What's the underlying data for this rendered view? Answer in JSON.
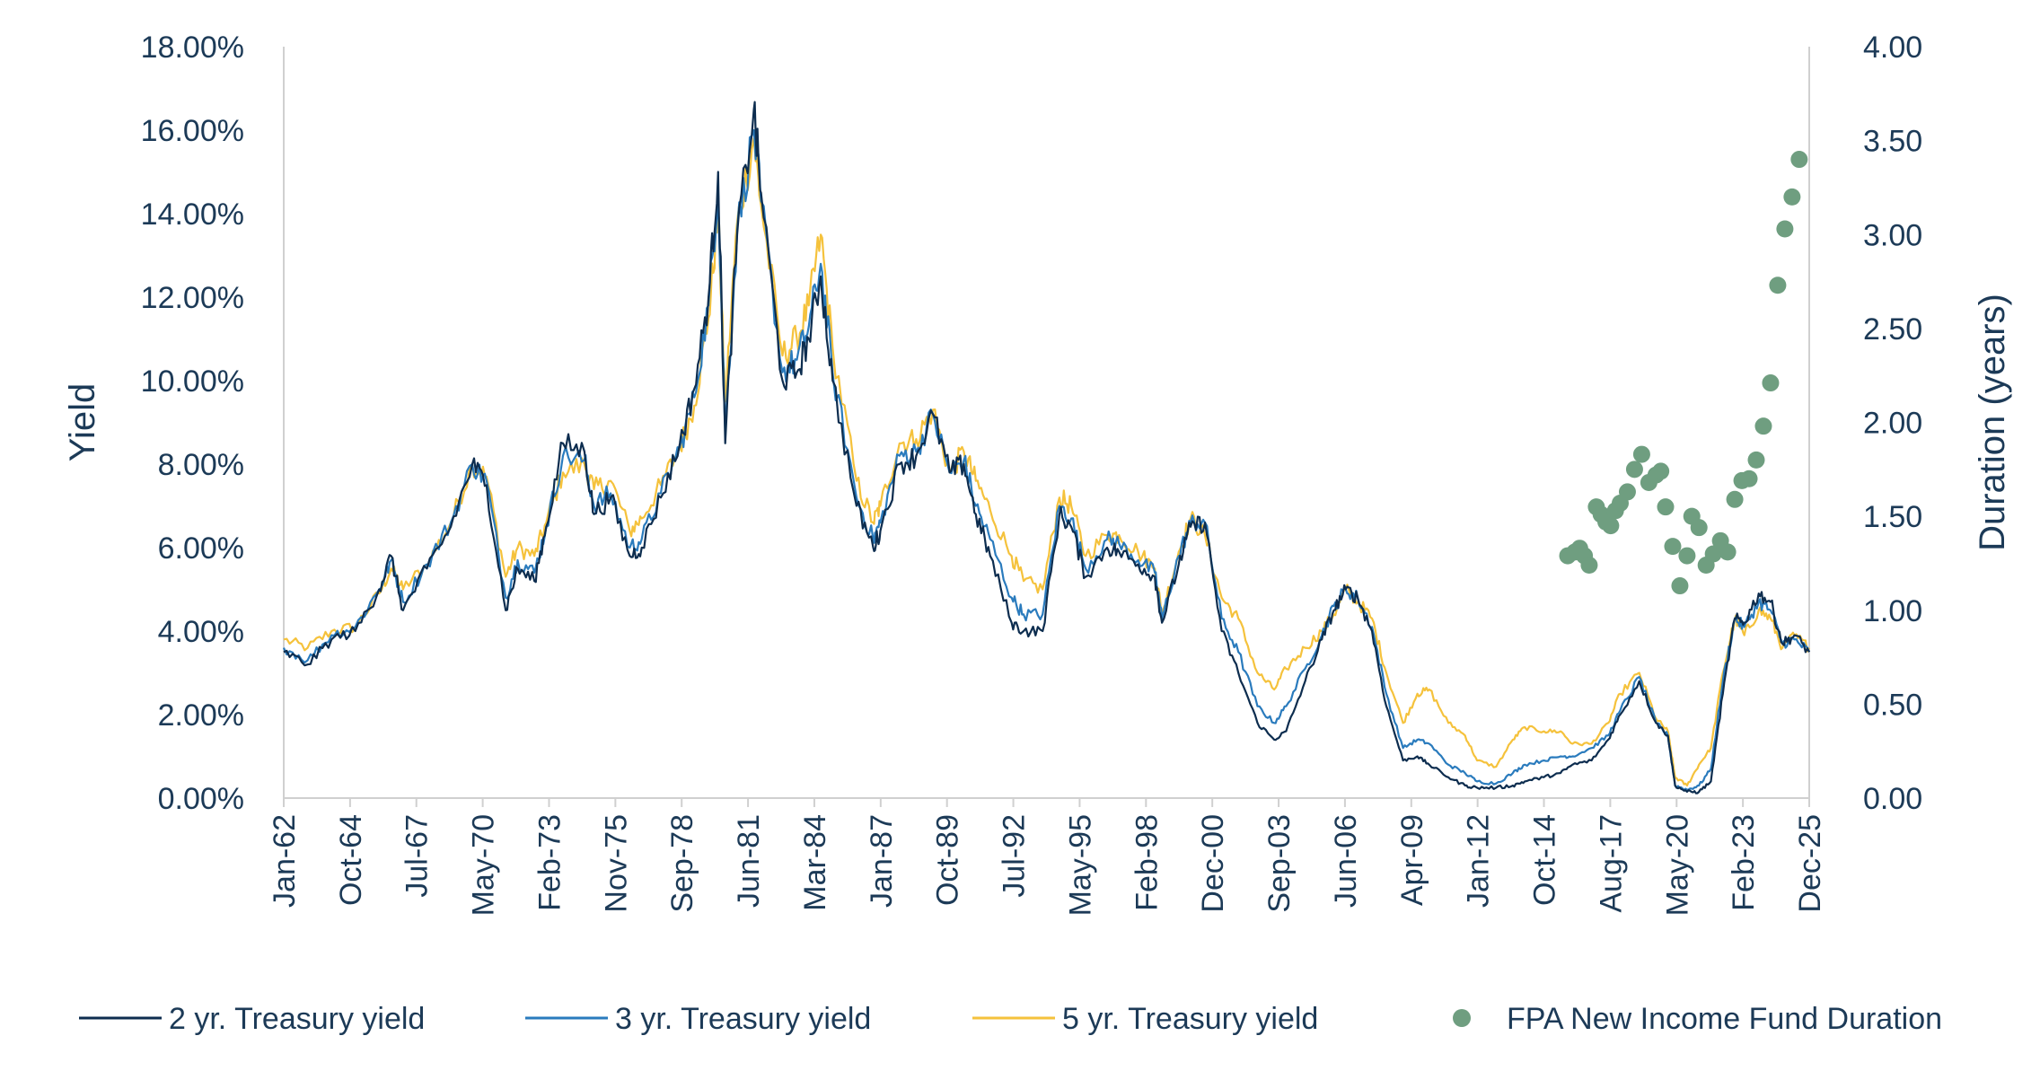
{
  "chart_data": {
    "type": "line",
    "title": "",
    "ylabel": "Yield",
    "y2label": "Duration (years)",
    "ylim": [
      0,
      18
    ],
    "y2lim": [
      0,
      4
    ],
    "xlim": [
      1962.0,
      2025.92
    ],
    "yticks": [
      "0.00%",
      "2.00%",
      "4.00%",
      "6.00%",
      "8.00%",
      "10.00%",
      "12.00%",
      "14.00%",
      "16.00%",
      "18.00%"
    ],
    "y2ticks": [
      "0.00",
      "0.50",
      "1.00",
      "1.50",
      "2.00",
      "2.50",
      "3.00",
      "3.50",
      "4.00"
    ],
    "xticks": [
      "Jan-62",
      "Oct-64",
      "Jul-67",
      "May-70",
      "Feb-73",
      "Nov-75",
      "Sep-78",
      "Jun-81",
      "Mar-84",
      "Jan-87",
      "Oct-89",
      "Jul-92",
      "May-95",
      "Feb-98",
      "Dec-00",
      "Sep-03",
      "Jun-06",
      "Apr-09",
      "Jan-12",
      "Oct-14",
      "Aug-17",
      "May-20",
      "Feb-23",
      "Dec-25"
    ],
    "grid": false,
    "legend_position": "bottom",
    "series": [
      {
        "name": "2 yr. Treasury yield",
        "axis": "left",
        "color": "#0d2d4f",
        "x": [
          1962.0,
          1963.0,
          1964.0,
          1965.0,
          1966.0,
          1966.5,
          1967.0,
          1968.0,
          1969.0,
          1969.9,
          1970.5,
          1971.3,
          1971.8,
          1972.5,
          1973.0,
          1973.7,
          1974.6,
          1975.0,
          1975.7,
          1976.5,
          1977.0,
          1977.8,
          1978.6,
          1979.2,
          1979.8,
          1980.2,
          1980.5,
          1981.0,
          1981.7,
          1982.0,
          1982.9,
          1983.5,
          1984.0,
          1984.5,
          1985.0,
          1986.0,
          1986.7,
          1987.0,
          1987.8,
          1988.5,
          1989.2,
          1989.9,
          1990.5,
          1991.0,
          1991.6,
          1992.5,
          1993.0,
          1993.8,
          1994.5,
          1995.0,
          1995.6,
          1996.5,
          1997.0,
          1997.8,
          1998.5,
          1998.8,
          1999.5,
          2000.0,
          2000.6,
          2001.3,
          2002.0,
          2002.8,
          2003.5,
          2004.0,
          2004.8,
          2005.5,
          2006.0,
          2006.5,
          2007.0,
          2007.6,
          2008.2,
          2008.9,
          2009.5,
          2010.0,
          2010.8,
          2011.5,
          2012.0,
          2012.8,
          2013.5,
          2014.0,
          2014.8,
          2015.5,
          2016.0,
          2016.8,
          2017.5,
          2018.0,
          2018.8,
          2019.5,
          2020.0,
          2020.3,
          2020.8,
          2021.3,
          2021.8,
          2022.3,
          2022.8,
          2023.2,
          2023.8,
          2024.3,
          2024.8,
          2025.3,
          2025.92
        ],
        "y": [
          3.5,
          3.2,
          3.8,
          4.0,
          5.0,
          5.8,
          4.5,
          5.5,
          6.5,
          8.0,
          7.5,
          4.5,
          5.5,
          5.2,
          6.5,
          8.5,
          8.3,
          6.8,
          7.2,
          5.8,
          6.0,
          7.2,
          8.5,
          9.8,
          12.0,
          15.0,
          8.5,
          13.5,
          16.5,
          14.5,
          10.0,
          10.2,
          11.0,
          12.5,
          10.0,
          7.0,
          6.0,
          6.4,
          8.0,
          8.2,
          9.2,
          7.8,
          8.0,
          6.8,
          5.8,
          4.2,
          4.0,
          4.0,
          6.8,
          6.5,
          5.3,
          6.0,
          5.9,
          5.6,
          5.3,
          4.2,
          5.6,
          6.5,
          6.6,
          4.0,
          3.0,
          1.8,
          1.4,
          1.6,
          2.8,
          3.8,
          4.5,
          5.0,
          4.8,
          4.0,
          2.2,
          0.9,
          1.0,
          0.8,
          0.5,
          0.3,
          0.25,
          0.25,
          0.3,
          0.4,
          0.5,
          0.6,
          0.8,
          0.9,
          1.4,
          2.0,
          2.8,
          1.8,
          1.5,
          0.3,
          0.15,
          0.15,
          0.4,
          2.5,
          4.3,
          4.2,
          4.9,
          4.7,
          3.7,
          3.9,
          3.5
        ]
      },
      {
        "name": "3 yr. Treasury yield",
        "axis": "left",
        "color": "#2a7bbd",
        "x": [
          1962.0,
          1963.0,
          1964.0,
          1965.0,
          1966.0,
          1966.5,
          1967.0,
          1968.0,
          1969.0,
          1969.9,
          1970.5,
          1971.3,
          1971.8,
          1972.5,
          1973.0,
          1973.7,
          1974.6,
          1975.0,
          1975.7,
          1976.5,
          1977.0,
          1977.8,
          1978.6,
          1979.2,
          1979.8,
          1980.2,
          1980.5,
          1981.0,
          1981.7,
          1982.0,
          1982.9,
          1983.5,
          1984.0,
          1984.5,
          1985.0,
          1986.0,
          1986.7,
          1987.0,
          1987.8,
          1988.5,
          1989.2,
          1989.9,
          1990.5,
          1991.0,
          1991.6,
          1992.5,
          1993.0,
          1993.8,
          1994.5,
          1995.0,
          1995.6,
          1996.5,
          1997.0,
          1997.8,
          1998.5,
          1998.8,
          1999.5,
          2000.0,
          2000.6,
          2001.3,
          2002.0,
          2002.8,
          2003.5,
          2004.0,
          2004.8,
          2005.5,
          2006.0,
          2006.5,
          2007.0,
          2007.6,
          2008.2,
          2008.9,
          2009.5,
          2010.0,
          2010.8,
          2011.5,
          2012.0,
          2012.8,
          2013.5,
          2014.0,
          2014.8,
          2015.5,
          2016.0,
          2016.8,
          2017.5,
          2018.0,
          2018.8,
          2019.5,
          2020.0,
          2020.3,
          2020.8,
          2021.3,
          2021.8,
          2022.3,
          2022.8,
          2023.2,
          2023.8,
          2024.3,
          2024.8,
          2025.3,
          2025.92
        ],
        "y": [
          3.6,
          3.3,
          3.9,
          4.1,
          5.0,
          5.7,
          4.7,
          5.6,
          6.6,
          8.0,
          7.6,
          4.8,
          5.7,
          5.4,
          6.5,
          8.2,
          8.1,
          7.0,
          7.3,
          6.0,
          6.2,
          7.3,
          8.4,
          9.6,
          11.8,
          14.6,
          8.8,
          13.6,
          16.0,
          14.3,
          10.2,
          10.5,
          11.3,
          12.8,
          10.2,
          7.2,
          6.2,
          6.6,
          8.2,
          8.3,
          9.2,
          7.8,
          8.1,
          7.0,
          6.2,
          4.8,
          4.4,
          4.4,
          7.0,
          6.7,
          5.5,
          6.2,
          6.1,
          5.7,
          5.4,
          4.3,
          5.8,
          6.6,
          6.6,
          4.3,
          3.5,
          2.2,
          1.8,
          2.2,
          3.1,
          3.9,
          4.6,
          5.0,
          4.8,
          4.1,
          2.5,
          1.2,
          1.4,
          1.3,
          0.8,
          0.6,
          0.4,
          0.35,
          0.6,
          0.8,
          0.9,
          1.0,
          1.0,
          1.2,
          1.5,
          2.1,
          2.9,
          1.8,
          1.5,
          0.3,
          0.2,
          0.3,
          0.7,
          2.8,
          4.3,
          4.1,
          4.7,
          4.5,
          3.7,
          3.8,
          3.5
        ]
      },
      {
        "name": "5 yr. Treasury yield",
        "axis": "left",
        "color": "#f5c23c",
        "x": [
          1962.0,
          1963.0,
          1964.0,
          1965.0,
          1966.0,
          1966.5,
          1967.0,
          1968.0,
          1969.0,
          1969.9,
          1970.5,
          1971.3,
          1971.8,
          1972.5,
          1973.0,
          1973.7,
          1974.6,
          1975.0,
          1975.7,
          1976.5,
          1977.0,
          1977.8,
          1978.6,
          1979.2,
          1979.8,
          1980.2,
          1980.5,
          1981.0,
          1981.7,
          1982.0,
          1982.9,
          1983.5,
          1984.0,
          1984.5,
          1985.0,
          1986.0,
          1986.7,
          1987.0,
          1987.8,
          1988.5,
          1989.2,
          1989.9,
          1990.5,
          1991.0,
          1991.6,
          1992.5,
          1993.0,
          1993.8,
          1994.5,
          1995.0,
          1995.6,
          1996.5,
          1997.0,
          1997.8,
          1998.5,
          1998.8,
          1999.5,
          2000.0,
          2000.6,
          2001.3,
          2002.0,
          2002.8,
          2003.5,
          2004.0,
          2004.8,
          2005.5,
          2006.0,
          2006.5,
          2007.0,
          2007.6,
          2008.2,
          2008.9,
          2009.5,
          2010.0,
          2010.8,
          2011.5,
          2012.0,
          2012.8,
          2013.5,
          2014.0,
          2014.8,
          2015.5,
          2016.0,
          2016.8,
          2017.5,
          2018.0,
          2018.8,
          2019.5,
          2020.0,
          2020.3,
          2020.8,
          2021.3,
          2021.8,
          2022.3,
          2022.8,
          2023.2,
          2023.8,
          2024.3,
          2024.8,
          2025.3,
          2025.92
        ],
        "y": [
          3.8,
          3.6,
          4.0,
          4.1,
          4.9,
          5.5,
          5.0,
          5.6,
          6.6,
          8.0,
          7.7,
          5.3,
          6.0,
          5.8,
          6.6,
          7.8,
          8.0,
          7.4,
          7.6,
          6.4,
          6.7,
          7.5,
          8.4,
          9.4,
          11.5,
          14.0,
          9.5,
          13.8,
          15.8,
          14.2,
          10.6,
          11.0,
          11.8,
          13.5,
          10.8,
          7.6,
          6.6,
          7.0,
          8.5,
          8.6,
          9.3,
          7.8,
          8.3,
          7.6,
          6.9,
          5.8,
          5.2,
          5.0,
          7.2,
          7.0,
          5.8,
          6.3,
          6.3,
          5.9,
          5.5,
          4.4,
          5.9,
          6.7,
          6.3,
          4.8,
          4.3,
          3.0,
          2.6,
          3.1,
          3.6,
          4.0,
          4.4,
          5.0,
          4.7,
          4.3,
          3.0,
          1.8,
          2.5,
          2.6,
          1.8,
          1.5,
          0.9,
          0.75,
          1.4,
          1.7,
          1.6,
          1.6,
          1.3,
          1.3,
          1.8,
          2.5,
          3.0,
          1.9,
          1.6,
          0.5,
          0.3,
          0.8,
          1.2,
          3.0,
          4.3,
          3.9,
          4.5,
          4.3,
          3.6,
          3.9,
          3.6
        ]
      },
      {
        "name": "FPA New Income Fund Duration",
        "axis": "right",
        "type": "scatter",
        "color": "#6f9e80",
        "x": [
          2015.8,
          2016.1,
          2016.3,
          2016.5,
          2016.7,
          2017.0,
          2017.2,
          2017.4,
          2017.6,
          2017.8,
          2018.0,
          2018.3,
          2018.6,
          2018.9,
          2019.2,
          2019.5,
          2019.7,
          2019.9,
          2020.2,
          2020.5,
          2020.8,
          2021.0,
          2021.3,
          2021.6,
          2021.9,
          2022.2,
          2022.5,
          2022.8,
          2023.1,
          2023.4,
          2023.7,
          2024.0,
          2024.3,
          2024.6,
          2024.9,
          2025.2,
          2025.5
        ],
        "y": [
          1.29,
          1.31,
          1.33,
          1.29,
          1.24,
          1.55,
          1.51,
          1.47,
          1.45,
          1.53,
          1.57,
          1.63,
          1.75,
          1.83,
          1.68,
          1.72,
          1.74,
          1.55,
          1.34,
          1.13,
          1.29,
          1.5,
          1.44,
          1.24,
          1.3,
          1.37,
          1.31,
          1.59,
          1.69,
          1.7,
          1.8,
          1.98,
          2.21,
          2.73,
          3.03,
          3.2,
          3.4
        ]
      }
    ]
  }
}
